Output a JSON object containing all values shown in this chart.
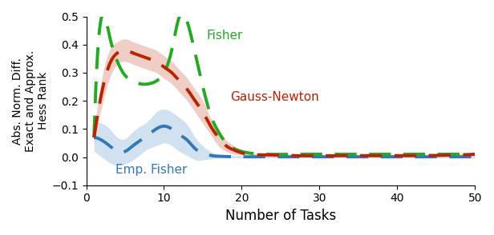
{
  "title": "",
  "xlabel": "Number of Tasks",
  "ylabel": "Abs. Norm. Diff.\nExact and Approx.\nHess Rank",
  "xlim": [
    1,
    50
  ],
  "ylim": [
    -0.1,
    0.5
  ],
  "xticks": [
    0,
    10,
    20,
    30,
    40,
    50
  ],
  "yticks": [
    -0.1,
    0.0,
    0.1,
    0.2,
    0.3,
    0.4,
    0.5
  ],
  "fisher_color": "#22aa22",
  "gauss_color": "#bb2200",
  "emp_color": "#3377bb",
  "fisher_x": [
    1,
    2,
    3,
    4,
    5,
    6,
    7,
    8,
    9,
    10,
    11,
    12,
    13,
    14,
    15,
    16,
    17,
    18,
    19,
    20,
    23,
    27,
    32,
    40,
    50
  ],
  "fisher_y": [
    0.07,
    0.5,
    0.43,
    0.34,
    0.29,
    0.27,
    0.26,
    0.26,
    0.27,
    0.3,
    0.38,
    0.5,
    0.48,
    0.37,
    0.25,
    0.15,
    0.09,
    0.05,
    0.03,
    0.02,
    0.01,
    0.01,
    0.01,
    0.01,
    0.01
  ],
  "gauss_x": [
    1,
    2,
    3,
    4,
    5,
    6,
    7,
    8,
    9,
    10,
    11,
    12,
    13,
    14,
    15,
    16,
    17,
    18,
    19,
    20,
    23,
    27,
    32,
    40,
    50
  ],
  "gauss_y": [
    0.07,
    0.23,
    0.33,
    0.37,
    0.38,
    0.37,
    0.36,
    0.35,
    0.34,
    0.32,
    0.3,
    0.27,
    0.24,
    0.2,
    0.16,
    0.11,
    0.07,
    0.04,
    0.025,
    0.015,
    0.008,
    0.005,
    0.005,
    0.005,
    0.01
  ],
  "gauss_lo": [
    0.05,
    0.18,
    0.28,
    0.33,
    0.34,
    0.33,
    0.32,
    0.31,
    0.3,
    0.28,
    0.26,
    0.23,
    0.2,
    0.16,
    0.12,
    0.08,
    0.04,
    0.02,
    0.01,
    0.008,
    0.003,
    0.002,
    0.002,
    0.002,
    0.005
  ],
  "gauss_hi": [
    0.09,
    0.28,
    0.38,
    0.41,
    0.42,
    0.41,
    0.4,
    0.39,
    0.38,
    0.36,
    0.34,
    0.31,
    0.28,
    0.24,
    0.2,
    0.14,
    0.1,
    0.06,
    0.04,
    0.022,
    0.013,
    0.008,
    0.008,
    0.008,
    0.015
  ],
  "emp_x": [
    1,
    2,
    3,
    4,
    5,
    6,
    7,
    8,
    9,
    10,
    11,
    12,
    13,
    14,
    15,
    16,
    17,
    18,
    20,
    23,
    27,
    32,
    40,
    50
  ],
  "emp_y": [
    0.07,
    0.06,
    0.04,
    0.02,
    0.02,
    0.04,
    0.06,
    0.08,
    0.1,
    0.11,
    0.1,
    0.08,
    0.06,
    0.03,
    0.015,
    0.006,
    0.003,
    0.002,
    0.001,
    0.001,
    0.001,
    0.001,
    0.001,
    0.001
  ],
  "emp_lo": [
    0.02,
    0.0,
    -0.02,
    -0.03,
    -0.025,
    -0.01,
    0.01,
    0.03,
    0.04,
    0.05,
    0.04,
    0.02,
    0.005,
    -0.01,
    -0.01,
    -0.007,
    -0.004,
    -0.003,
    -0.003,
    -0.003,
    -0.003,
    -0.003,
    -0.003,
    -0.003
  ],
  "emp_hi": [
    0.12,
    0.12,
    0.1,
    0.07,
    0.065,
    0.09,
    0.11,
    0.13,
    0.16,
    0.17,
    0.16,
    0.14,
    0.115,
    0.07,
    0.04,
    0.019,
    0.01,
    0.007,
    0.005,
    0.005,
    0.005,
    0.005,
    0.005,
    0.005
  ],
  "label_fisher": "Fisher",
  "label_gauss": "Gauss-Newton",
  "label_emp": "Emp. Fisher",
  "background_color": "#ffffff"
}
